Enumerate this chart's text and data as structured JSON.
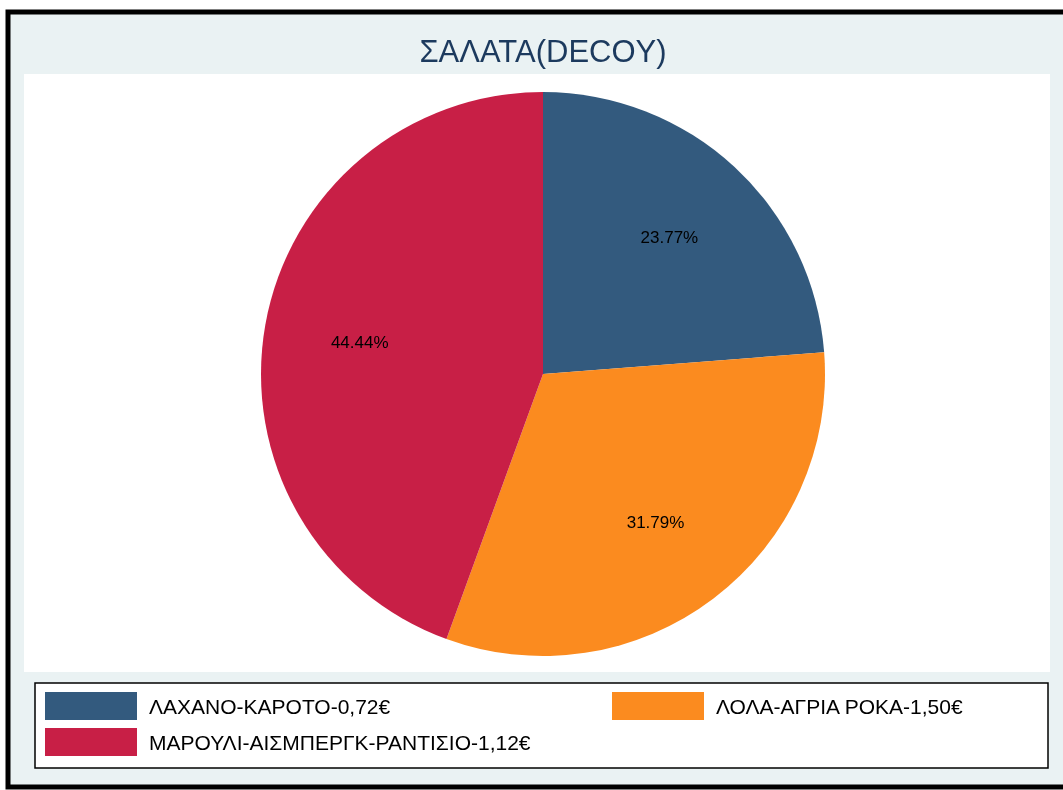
{
  "chart_data": {
    "type": "pie",
    "title": "ΣΑΛΑΤΑ(DECOY)",
    "categories": [
      "ΛΑΧΑΝΟ-ΚΑΡΟΤΟ-0,72€",
      "ΛΟΛΑ-ΑΓΡΙΑ ΡΟΚΑ-1,50€",
      "ΜΑΡΟΥΛΙ-ΑΙΣΜΠΕΡΓΚ-ΡΑΝΤΙΣΙΟ-1,12€"
    ],
    "values": [
      23.77,
      31.79,
      44.44
    ],
    "colors": [
      "#335a7e",
      "#fb8b1f",
      "#c81f46"
    ],
    "value_labels": [
      "23.77%",
      "31.79%",
      "44.44%"
    ],
    "legend": "bottom"
  }
}
